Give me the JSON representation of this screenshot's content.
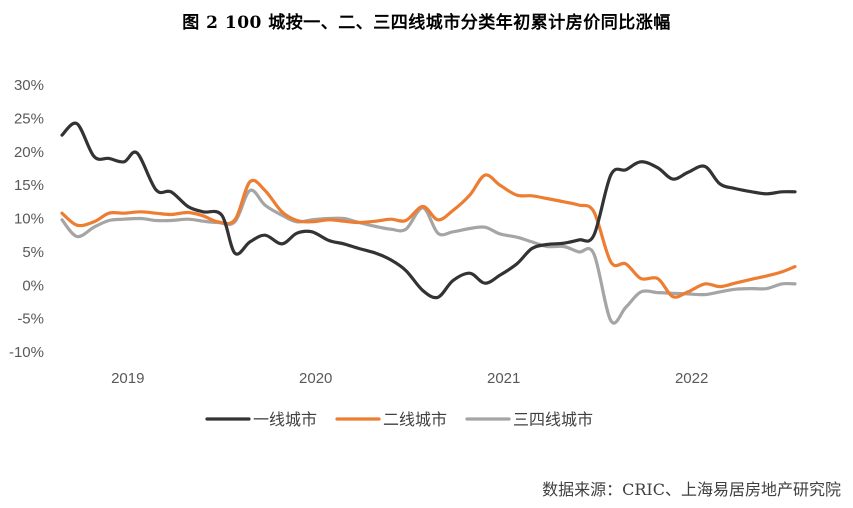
{
  "title": "图 2    100 城按一、二、三四线城市分类年初累计房价同比涨幅",
  "source": "数据来源：CRIC、上海易居房地产研究院",
  "chart_data": {
    "type": "line",
    "title": "图 2    100 城按一、二、三四线城市分类年初累计房价同比涨幅",
    "x_range": [
      2018.65,
      2022.55
    ],
    "ylim": [
      -10,
      30
    ],
    "y_ticks": [
      30,
      25,
      20,
      15,
      10,
      5,
      0,
      -5,
      -10
    ],
    "y_tick_labels": [
      "30%",
      "25%",
      "20%",
      "15%",
      "10%",
      "5%",
      "0%",
      "-5%",
      "-10%"
    ],
    "x_tick_positions": [
      2019.0,
      2020.0,
      2021.0,
      2022.0
    ],
    "x_tick_labels": [
      "2019",
      "2020",
      "2021",
      "2022"
    ],
    "grid": false,
    "legend_position": "bottom",
    "series": [
      {
        "name": "一线城市",
        "color": "#333333",
        "x": [
          2018.65,
          2018.73,
          2018.82,
          2018.9,
          2018.98,
          2019.05,
          2019.15,
          2019.23,
          2019.32,
          2019.4,
          2019.5,
          2019.57,
          2019.65,
          2019.73,
          2019.82,
          2019.9,
          2019.98,
          2020.07,
          2020.15,
          2020.23,
          2020.32,
          2020.4,
          2020.48,
          2020.57,
          2020.65,
          2020.73,
          2020.82,
          2020.9,
          2020.98,
          2021.07,
          2021.15,
          2021.23,
          2021.32,
          2021.4,
          2021.48,
          2021.57,
          2021.65,
          2021.73,
          2021.82,
          2021.9,
          2021.98,
          2022.07,
          2022.15,
          2022.23,
          2022.32,
          2022.4,
          2022.48,
          2022.55
        ],
        "values": [
          22.5,
          24.2,
          19.3,
          19.0,
          18.5,
          19.8,
          14.3,
          14.0,
          11.8,
          11.0,
          10.5,
          4.8,
          6.5,
          7.5,
          6.2,
          7.8,
          8.0,
          6.7,
          6.2,
          5.5,
          4.8,
          3.8,
          2.2,
          -0.8,
          -1.8,
          0.7,
          1.8,
          0.3,
          1.5,
          3.2,
          5.5,
          6.1,
          6.3,
          6.8,
          7.5,
          16.5,
          17.3,
          18.5,
          17.6,
          15.9,
          16.9,
          17.8,
          15.2,
          14.5,
          14.0,
          13.7,
          14.0,
          14.0
        ]
      },
      {
        "name": "二线城市",
        "color": "#ED7D31",
        "x": [
          2018.65,
          2018.73,
          2018.82,
          2018.9,
          2018.98,
          2019.07,
          2019.15,
          2019.23,
          2019.32,
          2019.4,
          2019.48,
          2019.57,
          2019.65,
          2019.73,
          2019.82,
          2019.9,
          2019.98,
          2020.07,
          2020.15,
          2020.23,
          2020.32,
          2020.4,
          2020.48,
          2020.57,
          2020.65,
          2020.73,
          2020.82,
          2020.9,
          2020.98,
          2021.07,
          2021.15,
          2021.23,
          2021.32,
          2021.4,
          2021.48,
          2021.57,
          2021.65,
          2021.73,
          2021.82,
          2021.9,
          2021.98,
          2022.07,
          2022.15,
          2022.23,
          2022.32,
          2022.4,
          2022.48,
          2022.55
        ],
        "values": [
          10.8,
          9.0,
          9.5,
          10.8,
          10.8,
          11.0,
          10.8,
          10.6,
          10.9,
          10.4,
          9.5,
          9.8,
          15.5,
          14.2,
          11.0,
          9.7,
          9.5,
          9.8,
          9.6,
          9.4,
          9.6,
          9.9,
          9.7,
          11.8,
          9.8,
          11.2,
          13.5,
          16.5,
          15.0,
          13.5,
          13.4,
          13.0,
          12.5,
          12.0,
          11.0,
          3.5,
          3.2,
          1.0,
          1.0,
          -1.7,
          -1.0,
          0.2,
          -0.2,
          0.3,
          0.9,
          1.4,
          2.0,
          2.8
        ]
      },
      {
        "name": "三四线城市",
        "color": "#A5A5A5",
        "x": [
          2018.65,
          2018.73,
          2018.82,
          2018.9,
          2018.98,
          2019.07,
          2019.15,
          2019.23,
          2019.32,
          2019.4,
          2019.48,
          2019.57,
          2019.65,
          2019.73,
          2019.82,
          2019.9,
          2019.98,
          2020.07,
          2020.15,
          2020.23,
          2020.32,
          2020.4,
          2020.48,
          2020.57,
          2020.65,
          2020.73,
          2020.82,
          2020.9,
          2020.98,
          2021.07,
          2021.15,
          2021.23,
          2021.32,
          2021.4,
          2021.48,
          2021.57,
          2021.65,
          2021.73,
          2021.82,
          2021.9,
          2021.98,
          2022.07,
          2022.15,
          2022.23,
          2022.32,
          2022.4,
          2022.48,
          2022.55
        ],
        "values": [
          9.8,
          7.3,
          8.7,
          9.7,
          9.9,
          10.0,
          9.7,
          9.7,
          9.9,
          9.6,
          9.4,
          9.5,
          14.2,
          12.0,
          10.5,
          9.5,
          9.8,
          10.0,
          10.0,
          9.4,
          8.8,
          8.4,
          8.4,
          11.6,
          7.8,
          8.0,
          8.5,
          8.7,
          7.7,
          7.2,
          6.5,
          5.8,
          5.8,
          5.0,
          4.7,
          -5.3,
          -3.3,
          -1.0,
          -1.1,
          -1.2,
          -1.3,
          -1.4,
          -1.0,
          -0.6,
          -0.5,
          -0.5,
          0.2,
          0.2
        ]
      }
    ]
  }
}
